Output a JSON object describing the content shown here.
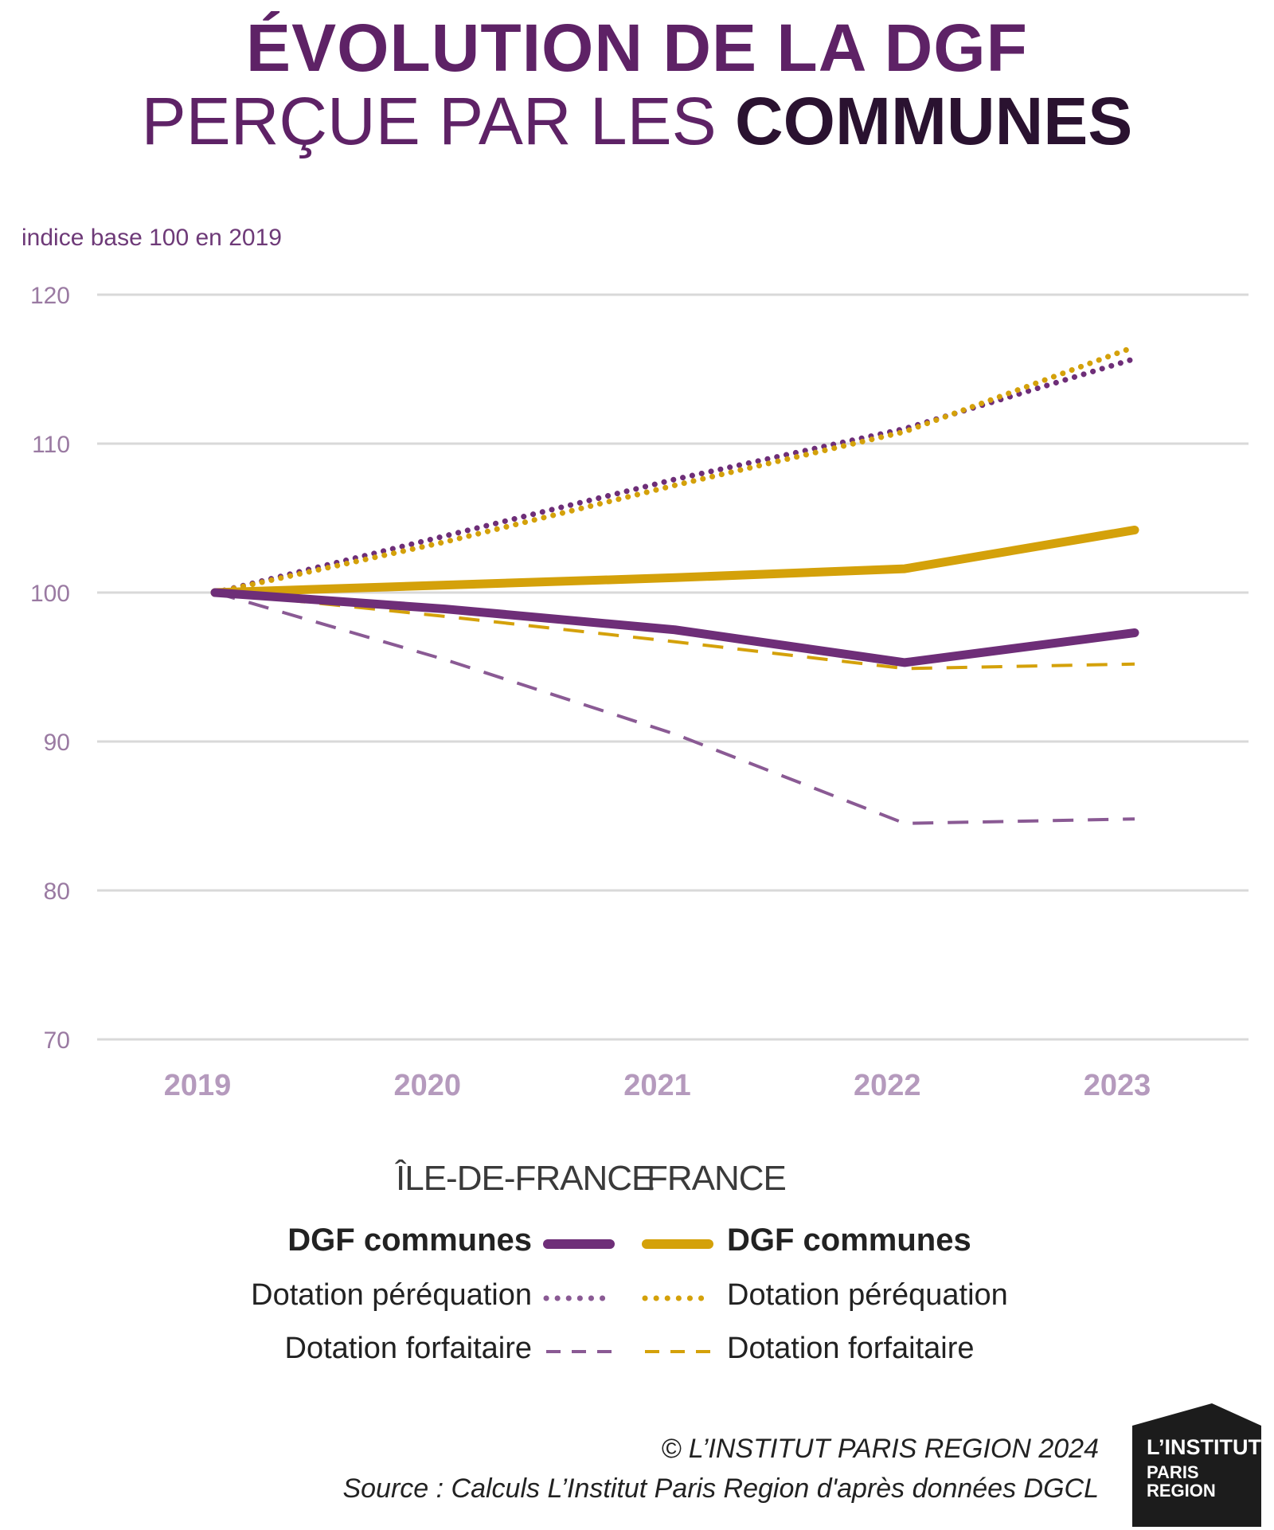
{
  "title": {
    "line1": "ÉVOLUTION DE LA DGF",
    "line2_regular": "PERÇUE PAR LES ",
    "line2_bold": "COMMUNES"
  },
  "colors": {
    "purple": "#6e2e78",
    "purple_light": "#8a5a94",
    "gold": "#d4a10a",
    "grid": "#d9d9d9"
  },
  "chart_data": {
    "type": "line",
    "title": "ÉVOLUTION DE LA DGF PERÇUE PAR LES COMMUNES",
    "ylabel": "indice base 100 en 2019",
    "xlabel": "",
    "x": [
      "2019",
      "2020",
      "2021",
      "2022",
      "2023"
    ],
    "ylim": [
      70,
      120
    ],
    "yticks": [
      70,
      80,
      90,
      100,
      110,
      120
    ],
    "grid": true,
    "legend_position": "bottom",
    "series": [
      {
        "name": "DGF communes",
        "region": "ÎLE-DE-FRANCE",
        "style": "solid",
        "color": "purple",
        "values": [
          100,
          98.9,
          97.5,
          95.3,
          97.3
        ]
      },
      {
        "name": "Dotation péréquation",
        "region": "ÎLE-DE-FRANCE",
        "style": "dotted",
        "color": "purple",
        "values": [
          100,
          103.8,
          107.6,
          111.0,
          115.7
        ]
      },
      {
        "name": "Dotation forfaitaire",
        "region": "ÎLE-DE-FRANCE",
        "style": "dashed",
        "color": "purple_light",
        "values": [
          100,
          95.5,
          90.5,
          84.5,
          84.8
        ]
      },
      {
        "name": "DGF communes",
        "region": "FRANCE",
        "style": "solid",
        "color": "gold",
        "values": [
          100,
          100.5,
          101.0,
          101.6,
          104.2
        ]
      },
      {
        "name": "Dotation péréquation",
        "region": "FRANCE",
        "style": "dotted",
        "color": "gold",
        "values": [
          100,
          103.4,
          107.2,
          110.8,
          116.5
        ]
      },
      {
        "name": "Dotation forfaitaire",
        "region": "FRANCE",
        "style": "dashed",
        "color": "gold",
        "values": [
          100,
          98.4,
          96.7,
          94.9,
          95.2
        ]
      }
    ]
  },
  "legend": {
    "head_left": "ÎLE-DE-FRANCE",
    "head_right": "FRANCE",
    "rows": [
      "DGF communes",
      "Dotation péréquation",
      "Dotation forfaitaire"
    ]
  },
  "footer": {
    "copyright": "© L’INSTITUT PARIS REGION 2024",
    "source": "Source : Calculs L’Institut Paris Region d'après données DGCL"
  },
  "logo": {
    "line1": "L’INSTITUT",
    "line2": "PARIS",
    "line3": "REGION"
  }
}
